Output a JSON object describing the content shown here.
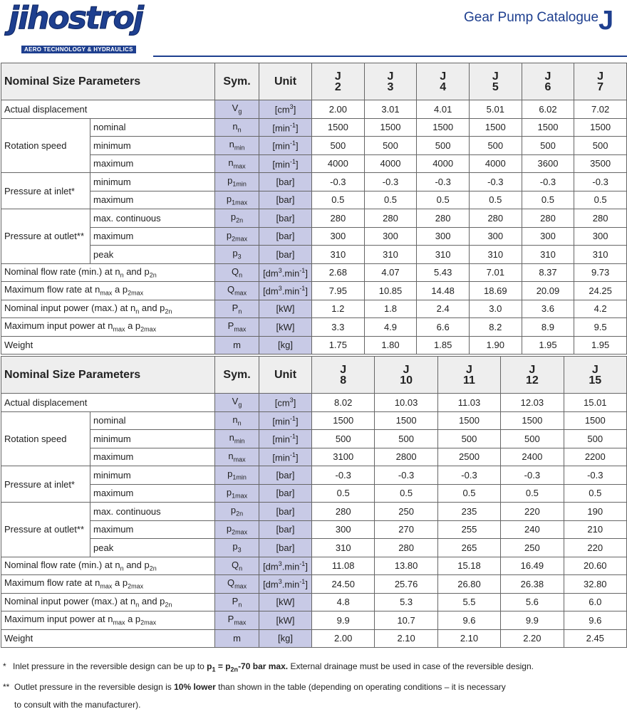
{
  "header": {
    "logo": "jihostroj",
    "logo_tagline": "AERO TECHNOLOGY & HYDRAULICS",
    "catalogue": "Gear Pump Catalogue",
    "series": "J"
  },
  "column_headers": {
    "parameters": "Nominal Size Parameters",
    "symbol": "Sym.",
    "unit": "Unit"
  },
  "params": [
    {
      "name": [
        "Actual displacement"
      ],
      "rows": [
        {
          "sym": [
            "V",
            {
              "sub": "g"
            }
          ],
          "unit": [
            "[cm",
            {
              "sup": "3"
            },
            "]"
          ]
        }
      ]
    },
    {
      "name": [
        "Rotation speed"
      ],
      "rows": [
        {
          "sub": "nominal",
          "sym": [
            "n",
            {
              "sub": "n"
            }
          ],
          "unit": [
            "[min",
            {
              "sup": "-1"
            },
            "]"
          ]
        },
        {
          "sub": "minimum",
          "sym": [
            "n",
            {
              "sub": "min"
            }
          ],
          "unit": [
            "[min",
            {
              "sup": "-1"
            },
            "]"
          ]
        },
        {
          "sub": "maximum",
          "sym": [
            "n",
            {
              "sub": "max"
            }
          ],
          "unit": [
            "[min",
            {
              "sup": "-1"
            },
            "]"
          ]
        }
      ]
    },
    {
      "name": [
        "Pressure at inlet*"
      ],
      "rows": [
        {
          "sub": "minimum",
          "sym": [
            "p",
            {
              "sub": "1min"
            }
          ],
          "unit": [
            "[bar]"
          ]
        },
        {
          "sub": "maximum",
          "sym": [
            "p",
            {
              "sub": "1max"
            }
          ],
          "unit": [
            "[bar]"
          ]
        }
      ]
    },
    {
      "name": [
        "Pressure at outlet**"
      ],
      "rows": [
        {
          "sub": "max. continuous",
          "sym": [
            "p",
            {
              "sub": "2n"
            }
          ],
          "unit": [
            "[bar]"
          ]
        },
        {
          "sub": "maximum",
          "sym": [
            "p",
            {
              "sub": "2max"
            }
          ],
          "unit": [
            "[bar]"
          ]
        },
        {
          "sub": "peak",
          "sym": [
            "p",
            {
              "sub": "3"
            }
          ],
          "unit": [
            "[bar]"
          ]
        }
      ]
    },
    {
      "name": [
        "Nominal flow rate (min.) at n",
        {
          "sub": "n"
        },
        " and p",
        {
          "sub": "2n"
        }
      ],
      "rows": [
        {
          "sym": [
            "Q",
            {
              "sub": "n"
            }
          ],
          "unit": [
            "[dm",
            {
              "sup": "3"
            },
            ".min",
            {
              "sup": "-1"
            },
            "]"
          ]
        }
      ]
    },
    {
      "name": [
        "Maximum flow rate at n",
        {
          "sub": "max"
        },
        " a p",
        {
          "sub": "2max"
        }
      ],
      "rows": [
        {
          "sym": [
            "Q",
            {
              "sub": "max"
            }
          ],
          "unit": [
            "[dm",
            {
              "sup": "3"
            },
            ".min",
            {
              "sup": "-1"
            },
            "]"
          ]
        }
      ]
    },
    {
      "name": [
        "Nominal input power (max.) at n",
        {
          "sub": "n"
        },
        " and p",
        {
          "sub": "2n"
        }
      ],
      "rows": [
        {
          "sym": [
            "P",
            {
              "sub": "n"
            }
          ],
          "unit": [
            "[kW]"
          ]
        }
      ]
    },
    {
      "name": [
        "Maximum input power at n",
        {
          "sub": "max"
        },
        " a p",
        {
          "sub": "2max"
        }
      ],
      "rows": [
        {
          "sym": [
            "P",
            {
              "sub": "max"
            }
          ],
          "unit": [
            "[kW]"
          ]
        }
      ]
    },
    {
      "name": [
        "Weight"
      ],
      "rows": [
        {
          "sym": [
            "m"
          ],
          "unit": [
            "[kg]"
          ]
        }
      ]
    }
  ],
  "tables": [
    {
      "sizes": [
        [
          "J",
          "2"
        ],
        [
          "J",
          "3"
        ],
        [
          "J",
          "4"
        ],
        [
          "J",
          "5"
        ],
        [
          "J",
          "6"
        ],
        [
          "J",
          "7"
        ]
      ],
      "values": [
        [
          "2.00",
          "3.01",
          "4.01",
          "5.01",
          "6.02",
          "7.02"
        ],
        [
          "1500",
          "1500",
          "1500",
          "1500",
          "1500",
          "1500"
        ],
        [
          "500",
          "500",
          "500",
          "500",
          "500",
          "500"
        ],
        [
          "4000",
          "4000",
          "4000",
          "4000",
          "3600",
          "3500"
        ],
        [
          "-0.3",
          "-0.3",
          "-0.3",
          "-0.3",
          "-0.3",
          "-0.3"
        ],
        [
          "0.5",
          "0.5",
          "0.5",
          "0.5",
          "0.5",
          "0.5"
        ],
        [
          "280",
          "280",
          "280",
          "280",
          "280",
          "280"
        ],
        [
          "300",
          "300",
          "300",
          "300",
          "300",
          "300"
        ],
        [
          "310",
          "310",
          "310",
          "310",
          "310",
          "310"
        ],
        [
          "2.68",
          "4.07",
          "5.43",
          "7.01",
          "8.37",
          "9.73"
        ],
        [
          "7.95",
          "10.85",
          "14.48",
          "18.69",
          "20.09",
          "24.25"
        ],
        [
          "1.2",
          "1.8",
          "2.4",
          "3.0",
          "3.6",
          "4.2"
        ],
        [
          "3.3",
          "4.9",
          "6.6",
          "8.2",
          "8.9",
          "9.5"
        ],
        [
          "1.75",
          "1.80",
          "1.85",
          "1.90",
          "1.95",
          "1.95"
        ]
      ]
    },
    {
      "sizes": [
        [
          "J",
          "8"
        ],
        [
          "J",
          "10"
        ],
        [
          "J",
          "11"
        ],
        [
          "J",
          "12"
        ],
        [
          "J",
          "15"
        ]
      ],
      "values": [
        [
          "8.02",
          "10.03",
          "11.03",
          "12.03",
          "15.01"
        ],
        [
          "1500",
          "1500",
          "1500",
          "1500",
          "1500"
        ],
        [
          "500",
          "500",
          "500",
          "500",
          "500"
        ],
        [
          "3100",
          "2800",
          "2500",
          "2400",
          "2200"
        ],
        [
          "-0.3",
          "-0.3",
          "-0.3",
          "-0.3",
          "-0.3"
        ],
        [
          "0.5",
          "0.5",
          "0.5",
          "0.5",
          "0.5"
        ],
        [
          "280",
          "250",
          "235",
          "220",
          "190"
        ],
        [
          "300",
          "270",
          "255",
          "240",
          "210"
        ],
        [
          "310",
          "280",
          "265",
          "250",
          "220"
        ],
        [
          "11.08",
          "13.80",
          "15.18",
          "16.49",
          "20.60"
        ],
        [
          "24.50",
          "25.76",
          "26.80",
          "26.38",
          "32.80"
        ],
        [
          "4.8",
          "5.3",
          "5.5",
          "5.6",
          "6.0"
        ],
        [
          "9.9",
          "10.7",
          "9.6",
          "9.9",
          "9.6"
        ],
        [
          "2.00",
          "2.10",
          "2.10",
          "2.20",
          "2.45"
        ]
      ]
    }
  ],
  "footnotes": [
    {
      "marker": "*",
      "lines": [
        [
          "Inlet pressure in the reversible design can be up to ",
          {
            "b": "p"
          },
          {
            "bsub": "1"
          },
          {
            "b": " = p"
          },
          {
            "bsub": "2n"
          },
          {
            "b": "-70 bar max."
          },
          " External drainage must be used in case of the reversible design."
        ]
      ]
    },
    {
      "marker": "**",
      "lines": [
        [
          "Outlet pressure in the reversible design is ",
          {
            "b": "10% lower"
          },
          " than shown in the table (depending on operating conditions – it is necessary"
        ],
        [
          "to consult with the manufacturer)."
        ]
      ]
    }
  ]
}
